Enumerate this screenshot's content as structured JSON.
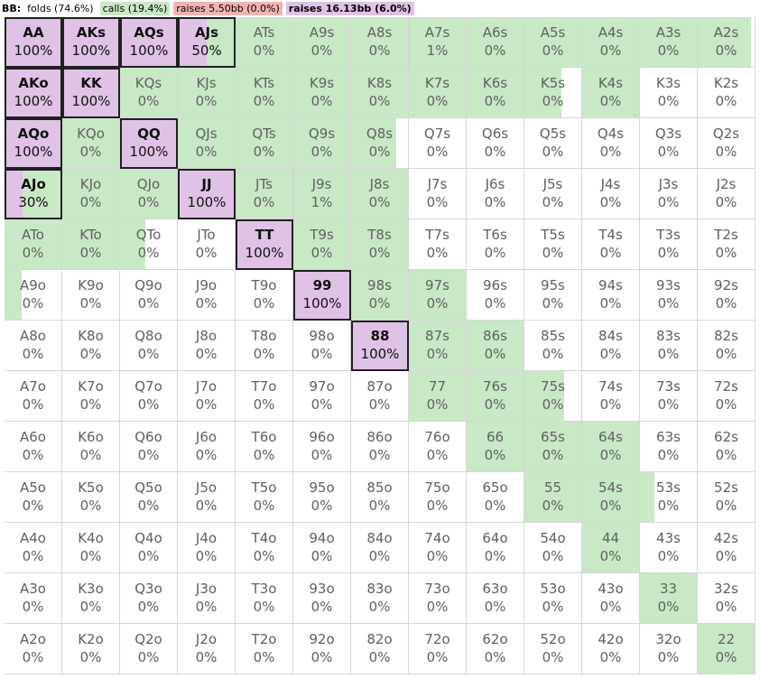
{
  "legend": {
    "player": "BB:",
    "folds": "folds (74.6%)",
    "calls": "calls (19.4%)",
    "raise_small": "raises 5.50bb (0.0%)",
    "raise_big": "raises 16.13bb (6.0%)"
  },
  "colors": {
    "fold": "#ffffff",
    "call": "#c9e8c6",
    "raise_small": "#f4b3b0",
    "raise_big": "#dfc2e6",
    "highlight_border": "#202020"
  },
  "chart_data": {
    "type": "heatmap",
    "title": "BB: folds (74.6%) calls (19.4%) raises 5.50bb (0.0%) raises 16.13bb (6.0%)",
    "ranks": [
      "A",
      "K",
      "Q",
      "J",
      "T",
      "9",
      "8",
      "7",
      "6",
      "5",
      "4",
      "3",
      "2"
    ],
    "note": "each cell lists [hand label, printed raise-16.13bb %, call fraction, raise-16.13bb fraction]",
    "cells": [
      [
        [
          "AA",
          "100%",
          0,
          1
        ],
        [
          "AKs",
          "100%",
          0,
          1
        ],
        [
          "AQs",
          "100%",
          0,
          1
        ],
        [
          "AJs",
          "50%",
          0.5,
          0.5
        ],
        [
          "ATs",
          "0%",
          1,
          0
        ],
        [
          "A9s",
          "0%",
          1,
          0
        ],
        [
          "A8s",
          "0%",
          1,
          0
        ],
        [
          "A7s",
          "1%",
          0.99,
          0.01
        ],
        [
          "A6s",
          "0%",
          1,
          0
        ],
        [
          "A5s",
          "0%",
          1,
          0
        ],
        [
          "A4s",
          "0%",
          1,
          0
        ],
        [
          "A3s",
          "0%",
          1,
          0
        ],
        [
          "A2s",
          "0%",
          0.93,
          0
        ]
      ],
      [
        [
          "AKo",
          "100%",
          0,
          1
        ],
        [
          "KK",
          "100%",
          0,
          1
        ],
        [
          "KQs",
          "0%",
          1,
          0
        ],
        [
          "KJs",
          "0%",
          1,
          0
        ],
        [
          "KTs",
          "0%",
          1,
          0
        ],
        [
          "K9s",
          "0%",
          1,
          0
        ],
        [
          "K8s",
          "0%",
          1,
          0
        ],
        [
          "K7s",
          "0%",
          1,
          0
        ],
        [
          "K6s",
          "0%",
          1,
          0
        ],
        [
          "K5s",
          "0%",
          0.65,
          0
        ],
        [
          "K4s",
          "0%",
          1,
          0
        ],
        [
          "K3s",
          "0%",
          0,
          0
        ],
        [
          "K2s",
          "0%",
          0,
          0
        ]
      ],
      [
        [
          "AQo",
          "100%",
          0,
          1
        ],
        [
          "KQo",
          "0%",
          1,
          0
        ],
        [
          "QQ",
          "100%",
          0,
          1
        ],
        [
          "QJs",
          "0%",
          1,
          0
        ],
        [
          "QTs",
          "0%",
          1,
          0
        ],
        [
          "Q9s",
          "0%",
          1,
          0
        ],
        [
          "Q8s",
          "0%",
          0.8,
          0
        ],
        [
          "Q7s",
          "0%",
          0,
          0
        ],
        [
          "Q6s",
          "0%",
          0,
          0
        ],
        [
          "Q5s",
          "0%",
          0,
          0
        ],
        [
          "Q4s",
          "0%",
          0,
          0
        ],
        [
          "Q3s",
          "0%",
          0,
          0
        ],
        [
          "Q2s",
          "0%",
          0,
          0
        ]
      ],
      [
        [
          "AJo",
          "30%",
          0.7,
          0.3
        ],
        [
          "KJo",
          "0%",
          1,
          0
        ],
        [
          "QJo",
          "0%",
          1,
          0
        ],
        [
          "JJ",
          "100%",
          0,
          1
        ],
        [
          "JTs",
          "0%",
          1,
          0
        ],
        [
          "J9s",
          "1%",
          0.99,
          0.01
        ],
        [
          "J8s",
          "0%",
          1,
          0
        ],
        [
          "J7s",
          "0%",
          0,
          0
        ],
        [
          "J6s",
          "0%",
          0,
          0
        ],
        [
          "J5s",
          "0%",
          0,
          0
        ],
        [
          "J4s",
          "0%",
          0,
          0
        ],
        [
          "J3s",
          "0%",
          0,
          0
        ],
        [
          "J2s",
          "0%",
          0,
          0
        ]
      ],
      [
        [
          "ATo",
          "0%",
          1,
          0
        ],
        [
          "KTo",
          "0%",
          1,
          0
        ],
        [
          "QTo",
          "0%",
          0.45,
          0
        ],
        [
          "JTo",
          "0%",
          0,
          0
        ],
        [
          "TT",
          "100%",
          0,
          1
        ],
        [
          "T9s",
          "0%",
          1,
          0
        ],
        [
          "T8s",
          "0%",
          1,
          0
        ],
        [
          "T7s",
          "0%",
          0,
          0
        ],
        [
          "T6s",
          "0%",
          0,
          0
        ],
        [
          "T5s",
          "0%",
          0,
          0
        ],
        [
          "T4s",
          "0%",
          0,
          0
        ],
        [
          "T3s",
          "0%",
          0,
          0
        ],
        [
          "T2s",
          "0%",
          0,
          0
        ]
      ],
      [
        [
          "A9o",
          "0%",
          0.3,
          0
        ],
        [
          "K9o",
          "0%",
          0,
          0
        ],
        [
          "Q9o",
          "0%",
          0,
          0
        ],
        [
          "J9o",
          "0%",
          0,
          0
        ],
        [
          "T9o",
          "0%",
          0,
          0
        ],
        [
          "99",
          "100%",
          0,
          1
        ],
        [
          "98s",
          "0%",
          1,
          0
        ],
        [
          "97s",
          "0%",
          1,
          0
        ],
        [
          "96s",
          "0%",
          0,
          0
        ],
        [
          "95s",
          "0%",
          0,
          0
        ],
        [
          "94s",
          "0%",
          0,
          0
        ],
        [
          "93s",
          "0%",
          0,
          0
        ],
        [
          "92s",
          "0%",
          0,
          0
        ]
      ],
      [
        [
          "A8o",
          "0%",
          0,
          0
        ],
        [
          "K8o",
          "0%",
          0,
          0
        ],
        [
          "Q8o",
          "0%",
          0,
          0
        ],
        [
          "J8o",
          "0%",
          0,
          0
        ],
        [
          "T8o",
          "0%",
          0,
          0
        ],
        [
          "98o",
          "0%",
          0,
          0
        ],
        [
          "88",
          "100%",
          0,
          1
        ],
        [
          "87s",
          "0%",
          1,
          0
        ],
        [
          "86s",
          "0%",
          1,
          0
        ],
        [
          "85s",
          "0%",
          0,
          0
        ],
        [
          "84s",
          "0%",
          0,
          0
        ],
        [
          "83s",
          "0%",
          0,
          0
        ],
        [
          "82s",
          "0%",
          0,
          0
        ]
      ],
      [
        [
          "A7o",
          "0%",
          0,
          0
        ],
        [
          "K7o",
          "0%",
          0,
          0
        ],
        [
          "Q7o",
          "0%",
          0,
          0
        ],
        [
          "J7o",
          "0%",
          0,
          0
        ],
        [
          "T7o",
          "0%",
          0,
          0
        ],
        [
          "97o",
          "0%",
          0,
          0
        ],
        [
          "87o",
          "0%",
          0,
          0
        ],
        [
          "77",
          "0%",
          1,
          0
        ],
        [
          "76s",
          "0%",
          1,
          0
        ],
        [
          "75s",
          "0%",
          0.7,
          0
        ],
        [
          "74s",
          "0%",
          0,
          0
        ],
        [
          "73s",
          "0%",
          0,
          0
        ],
        [
          "72s",
          "0%",
          0,
          0
        ]
      ],
      [
        [
          "A6o",
          "0%",
          0,
          0
        ],
        [
          "K6o",
          "0%",
          0,
          0
        ],
        [
          "Q6o",
          "0%",
          0,
          0
        ],
        [
          "J6o",
          "0%",
          0,
          0
        ],
        [
          "T6o",
          "0%",
          0,
          0
        ],
        [
          "96o",
          "0%",
          0,
          0
        ],
        [
          "86o",
          "0%",
          0,
          0
        ],
        [
          "76o",
          "0%",
          0,
          0
        ],
        [
          "66",
          "0%",
          1,
          0
        ],
        [
          "65s",
          "0%",
          1,
          0
        ],
        [
          "64s",
          "0%",
          1,
          0
        ],
        [
          "63s",
          "0%",
          0,
          0
        ],
        [
          "62s",
          "0%",
          0,
          0
        ]
      ],
      [
        [
          "A5o",
          "0%",
          0,
          0
        ],
        [
          "K5o",
          "0%",
          0,
          0
        ],
        [
          "Q5o",
          "0%",
          0,
          0
        ],
        [
          "J5o",
          "0%",
          0,
          0
        ],
        [
          "T5o",
          "0%",
          0,
          0
        ],
        [
          "95o",
          "0%",
          0,
          0
        ],
        [
          "85o",
          "0%",
          0,
          0
        ],
        [
          "75o",
          "0%",
          0,
          0
        ],
        [
          "65o",
          "0%",
          0,
          0
        ],
        [
          "55",
          "0%",
          1,
          0
        ],
        [
          "54s",
          "0%",
          1,
          0
        ],
        [
          "53s",
          "0%",
          0.25,
          0
        ],
        [
          "52s",
          "0%",
          0,
          0
        ]
      ],
      [
        [
          "A4o",
          "0%",
          0,
          0
        ],
        [
          "K4o",
          "0%",
          0,
          0
        ],
        [
          "Q4o",
          "0%",
          0,
          0
        ],
        [
          "J4o",
          "0%",
          0,
          0
        ],
        [
          "T4o",
          "0%",
          0,
          0
        ],
        [
          "94o",
          "0%",
          0,
          0
        ],
        [
          "84o",
          "0%",
          0,
          0
        ],
        [
          "74o",
          "0%",
          0,
          0
        ],
        [
          "64o",
          "0%",
          0,
          0
        ],
        [
          "54o",
          "0%",
          0,
          0
        ],
        [
          "44",
          "0%",
          1,
          0
        ],
        [
          "43s",
          "0%",
          0,
          0
        ],
        [
          "42s",
          "0%",
          0,
          0
        ]
      ],
      [
        [
          "A3o",
          "0%",
          0,
          0
        ],
        [
          "K3o",
          "0%",
          0,
          0
        ],
        [
          "Q3o",
          "0%",
          0,
          0
        ],
        [
          "J3o",
          "0%",
          0,
          0
        ],
        [
          "T3o",
          "0%",
          0,
          0
        ],
        [
          "93o",
          "0%",
          0,
          0
        ],
        [
          "83o",
          "0%",
          0,
          0
        ],
        [
          "73o",
          "0%",
          0,
          0
        ],
        [
          "63o",
          "0%",
          0,
          0
        ],
        [
          "53o",
          "0%",
          0,
          0
        ],
        [
          "43o",
          "0%",
          0,
          0
        ],
        [
          "33",
          "0%",
          1,
          0
        ],
        [
          "32s",
          "0%",
          0,
          0
        ]
      ],
      [
        [
          "A2o",
          "0%",
          0,
          0
        ],
        [
          "K2o",
          "0%",
          0,
          0
        ],
        [
          "Q2o",
          "0%",
          0,
          0
        ],
        [
          "J2o",
          "0%",
          0,
          0
        ],
        [
          "T2o",
          "0%",
          0,
          0
        ],
        [
          "92o",
          "0%",
          0,
          0
        ],
        [
          "82o",
          "0%",
          0,
          0
        ],
        [
          "72o",
          "0%",
          0,
          0
        ],
        [
          "62o",
          "0%",
          0,
          0
        ],
        [
          "52o",
          "0%",
          0,
          0
        ],
        [
          "42o",
          "0%",
          0,
          0
        ],
        [
          "32o",
          "0%",
          0,
          0
        ],
        [
          "22",
          "0%",
          1,
          0
        ]
      ]
    ]
  }
}
